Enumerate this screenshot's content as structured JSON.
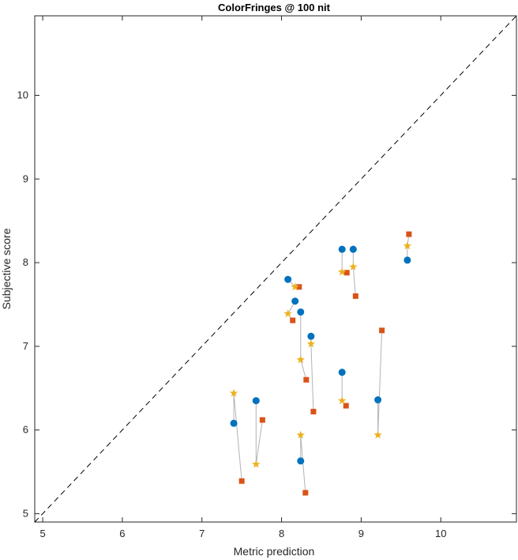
{
  "chart_data": {
    "type": "scatter",
    "title": "ColorFringes @ 100 nit",
    "xlabel": "Metric prediction",
    "ylabel": "Subjective score",
    "xlim": [
      4.9,
      10.95
    ],
    "ylim": [
      4.9,
      10.95
    ],
    "xticks": [
      5,
      6,
      7,
      8,
      9,
      10
    ],
    "yticks": [
      5,
      6,
      7,
      8,
      9,
      10
    ],
    "grid": false,
    "legend": "none",
    "reference_line": {
      "style": "dashed",
      "color": "#000000",
      "from": [
        4.9,
        4.9
      ],
      "to": [
        10.95,
        10.95
      ]
    },
    "connector_color": "#b3b3b3",
    "series": [
      {
        "marker": "circle",
        "color": "#0072bd",
        "points": [
          [
            9.21,
            6.36
          ],
          [
            8.24,
            5.63
          ],
          [
            7.4,
            6.08
          ],
          [
            7.68,
            6.35
          ],
          [
            8.76,
            6.69
          ],
          [
            8.37,
            7.12
          ],
          [
            8.24,
            7.41
          ],
          [
            8.17,
            7.54
          ],
          [
            8.08,
            7.8
          ],
          [
            8.76,
            8.16
          ],
          [
            8.9,
            8.16
          ],
          [
            9.58,
            8.03
          ]
        ]
      },
      {
        "marker": "square",
        "color": "#d95319",
        "points": [
          [
            9.26,
            7.19
          ],
          [
            8.3,
            5.25
          ],
          [
            7.5,
            5.39
          ],
          [
            7.76,
            6.12
          ],
          [
            8.81,
            6.29
          ],
          [
            8.4,
            6.22
          ],
          [
            8.31,
            6.6
          ],
          [
            8.14,
            7.31
          ],
          [
            8.22,
            7.71
          ],
          [
            8.82,
            7.88
          ],
          [
            8.93,
            7.6
          ],
          [
            9.6,
            8.34
          ]
        ]
      },
      {
        "marker": "star",
        "color": "#edb120",
        "points": [
          [
            9.21,
            5.94
          ],
          [
            8.24,
            5.94
          ],
          [
            7.4,
            6.44
          ],
          [
            7.68,
            5.59
          ],
          [
            8.76,
            6.35
          ],
          [
            8.37,
            7.03
          ],
          [
            8.24,
            6.84
          ],
          [
            8.08,
            7.39
          ],
          [
            8.17,
            7.71
          ],
          [
            8.76,
            7.89
          ],
          [
            8.9,
            7.95
          ],
          [
            9.58,
            8.2
          ]
        ]
      }
    ]
  }
}
